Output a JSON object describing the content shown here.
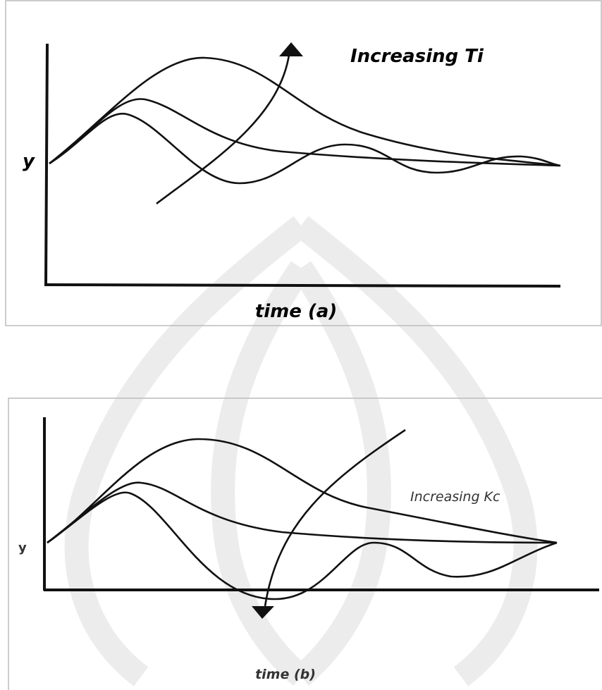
{
  "panel_a": {
    "annotation": "Increasing Ti",
    "y_label": "y",
    "x_label": "time (a)"
  },
  "panel_b": {
    "annotation": "Increasing Kc",
    "y_label": "y",
    "x_label": "time (b)"
  }
}
